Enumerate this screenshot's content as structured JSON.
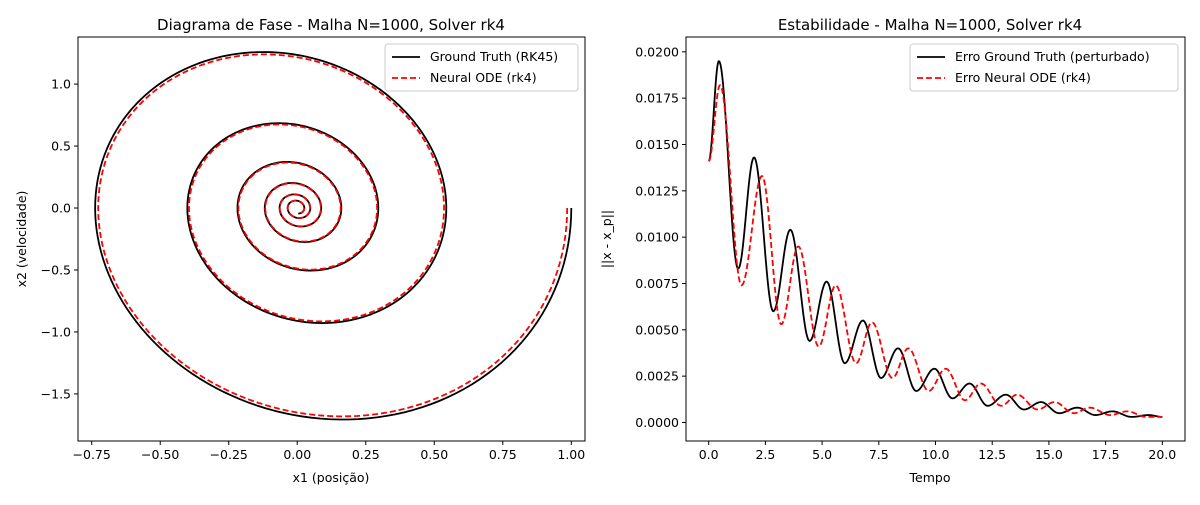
{
  "chart_data": [
    {
      "type": "line",
      "title": "Diagrama de Fase - Malha N=1000, Solver rk4",
      "xlabel": "x1 (posição)",
      "ylabel": "x2 (velocidade)",
      "xlim": [
        -0.8,
        1.05
      ],
      "ylim": [
        -1.88,
        1.38
      ],
      "x_ticks": [
        -0.75,
        -0.5,
        -0.25,
        0.0,
        0.25,
        0.5,
        0.75,
        1.0
      ],
      "x_tick_labels": [
        "−0.75",
        "−0.50",
        "−0.25",
        "0.00",
        "0.25",
        "0.50",
        "0.75",
        "1.00"
      ],
      "y_ticks": [
        -1.5,
        -1.0,
        -0.5,
        0.0,
        0.5,
        1.0
      ],
      "y_tick_labels": [
        "−1.5",
        "−1.0",
        "−0.5",
        "0.0",
        "0.5",
        "1.0"
      ],
      "grid": false,
      "legend_position": "top-right",
      "series": [
        {
          "name": "Ground Truth (RK45)",
          "color": "#000000",
          "style": "solid",
          "model": {
            "x0": 1.0,
            "decay": 0.19,
            "omega": 1.96,
            "t_end": 20,
            "samples": 1000,
            "phase_scale": 1.0
          }
        },
        {
          "name": "Neural ODE (rk4)",
          "color": "#ff0000",
          "style": "dashed",
          "model": {
            "x0": 1.0,
            "decay": 0.19,
            "omega": 1.96,
            "t_end": 20,
            "samples": 1000,
            "phase_scale": 0.985
          }
        }
      ]
    },
    {
      "type": "line",
      "title": "Estabilidade - Malha N=1000, Solver rk4",
      "xlabel": "Tempo",
      "ylabel": "||x - x_p||",
      "xlim": [
        -1.0,
        21.0
      ],
      "ylim": [
        -0.001,
        0.0208
      ],
      "x_ticks": [
        0.0,
        2.5,
        5.0,
        7.5,
        10.0,
        12.5,
        15.0,
        17.5,
        20.0
      ],
      "x_tick_labels": [
        "0.0",
        "2.5",
        "5.0",
        "7.5",
        "10.0",
        "12.5",
        "15.0",
        "17.5",
        "20.0"
      ],
      "y_ticks": [
        0.0,
        0.0025,
        0.005,
        0.0075,
        0.01,
        0.0125,
        0.015,
        0.0175,
        0.02
      ],
      "y_tick_labels": [
        "0.0000",
        "0.0025",
        "0.0050",
        "0.0075",
        "0.0100",
        "0.0125",
        "0.0150",
        "0.0175",
        "0.0200"
      ],
      "grid": false,
      "legend_position": "top-right",
      "series": [
        {
          "name": "Erro Ground Truth (perturbado)",
          "color": "#000000",
          "style": "solid",
          "peaks": [
            [
              0.0,
              0.0141
            ],
            [
              0.45,
              0.0195
            ],
            [
              1.3,
              0.0083
            ],
            [
              2.0,
              0.0143
            ],
            [
              2.85,
              0.006
            ],
            [
              3.6,
              0.0104
            ],
            [
              4.45,
              0.0044
            ],
            [
              5.2,
              0.0076
            ],
            [
              6.0,
              0.0032
            ],
            [
              6.8,
              0.0055
            ],
            [
              7.6,
              0.0024
            ],
            [
              8.35,
              0.004
            ],
            [
              9.15,
              0.0017
            ],
            [
              9.95,
              0.0029
            ],
            [
              10.75,
              0.0013
            ],
            [
              11.5,
              0.0021
            ],
            [
              12.3,
              0.0009
            ],
            [
              13.1,
              0.0015
            ],
            [
              13.9,
              0.0007
            ],
            [
              14.65,
              0.0011
            ],
            [
              15.45,
              0.0005
            ],
            [
              16.25,
              0.0008
            ],
            [
              17.05,
              0.0004
            ],
            [
              17.8,
              0.0006
            ],
            [
              18.65,
              0.0003
            ],
            [
              19.4,
              0.0004
            ],
            [
              20.0,
              0.0003
            ]
          ]
        },
        {
          "name": "Erro Neural ODE (rk4)",
          "color": "#ff0000",
          "style": "dashed",
          "peaks": [
            [
              0.0,
              0.0141
            ],
            [
              0.5,
              0.0182
            ],
            [
              1.45,
              0.0074
            ],
            [
              2.35,
              0.0133
            ],
            [
              3.2,
              0.0053
            ],
            [
              3.95,
              0.0095
            ],
            [
              4.85,
              0.0041
            ],
            [
              5.6,
              0.0074
            ],
            [
              6.5,
              0.0032
            ],
            [
              7.2,
              0.0054
            ],
            [
              8.1,
              0.0024
            ],
            [
              8.8,
              0.004
            ],
            [
              9.7,
              0.0017
            ],
            [
              10.45,
              0.0029
            ],
            [
              11.3,
              0.0012
            ],
            [
              12.0,
              0.0021
            ],
            [
              12.9,
              0.0009
            ],
            [
              13.6,
              0.0015
            ],
            [
              14.5,
              0.0007
            ],
            [
              15.25,
              0.0011
            ],
            [
              16.1,
              0.0005
            ],
            [
              16.8,
              0.0008
            ],
            [
              17.7,
              0.0004
            ],
            [
              18.45,
              0.0006
            ],
            [
              19.3,
              0.0003
            ],
            [
              20.0,
              0.0003
            ]
          ]
        }
      ]
    }
  ]
}
